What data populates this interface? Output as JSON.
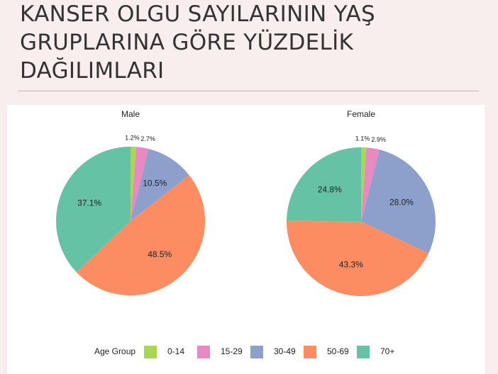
{
  "slide_title": [
    "KANSER OLGU SAYILARININ YAŞ",
    "GRUPLARINA GÖRE YÜZDELİK",
    "DAĞILIMLARI"
  ],
  "legend": {
    "title": "Age Group"
  },
  "chart_data": [
    {
      "type": "pie",
      "title": "Male",
      "categories": [
        "0-14",
        "15-29",
        "30-49",
        "50-69",
        "70+"
      ],
      "values": [
        1.2,
        2.7,
        10.5,
        48.5,
        37.1
      ],
      "value_labels": [
        "1.2%",
        "2.7%",
        "10.5%",
        "48.5%",
        "37.1%"
      ],
      "colors": [
        "#a6d854",
        "#e78ac3",
        "#8da0cb",
        "#fc8d62",
        "#66c2a5"
      ]
    },
    {
      "type": "pie",
      "title": "Female",
      "categories": [
        "0-14",
        "15-29",
        "30-49",
        "50-69",
        "70+"
      ],
      "values": [
        1.1,
        2.9,
        28.0,
        43.3,
        24.8
      ],
      "value_labels": [
        "1.1%",
        "2.9%",
        "28.0%",
        "43.3%",
        "24.8%"
      ],
      "colors": [
        "#a6d854",
        "#e78ac3",
        "#8da0cb",
        "#fc8d62",
        "#66c2a5"
      ]
    }
  ]
}
